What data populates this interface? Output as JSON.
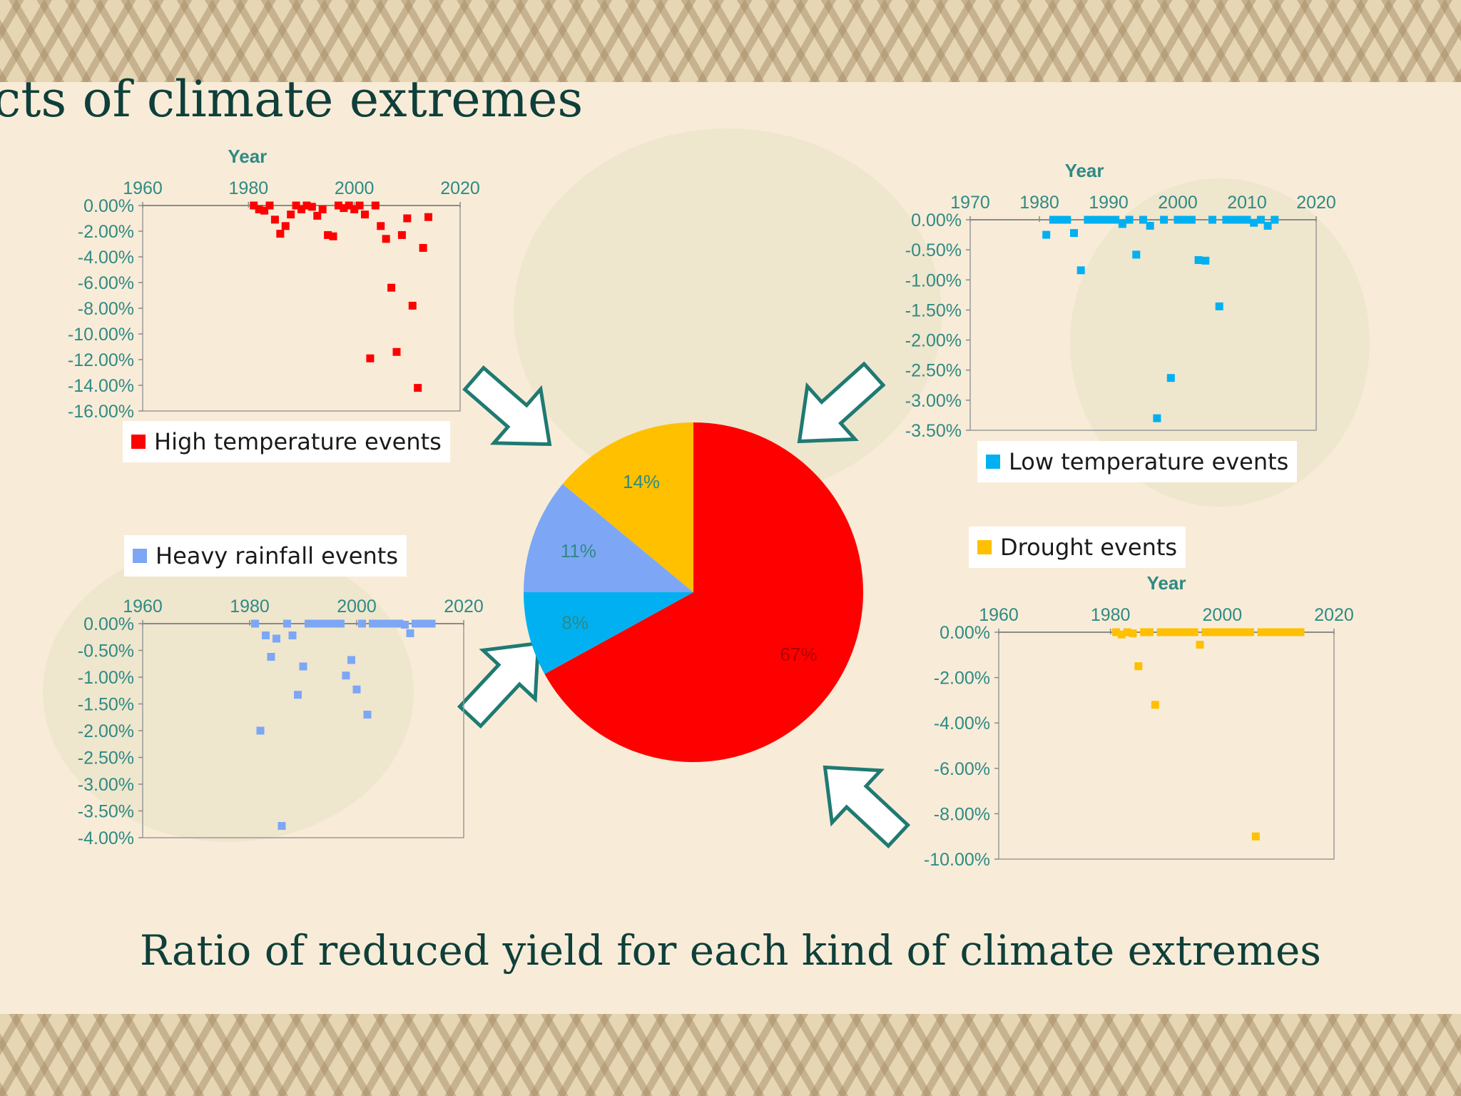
{
  "slide": {
    "title": "cts of climate extremes",
    "caption": "Ratio of reduced yield for each kind of climate extremes"
  },
  "colors": {
    "text_dark": "#0f3f3a",
    "axis_teal": "#2f8a84",
    "arrow_stroke": "#1f7a72",
    "high_temp": "#ff0000",
    "low_temp": "#00b0f0",
    "heavy_rain": "#7da7f5",
    "drought": "#ffc000"
  },
  "chart_data": [
    {
      "type": "pie",
      "title": "",
      "slices": [
        {
          "name": "High temperature events",
          "value": 67,
          "label": "67%",
          "color": "#ff0000"
        },
        {
          "name": "Low temperature events",
          "value": 8,
          "label": "8%",
          "color": "#00b0f0"
        },
        {
          "name": "Heavy rainfall events",
          "value": 11,
          "label": "11%",
          "color": "#7da7f5"
        },
        {
          "name": "Drought events",
          "value": 14,
          "label": "14%",
          "color": "#ffc000"
        }
      ]
    },
    {
      "type": "scatter",
      "xlabel": "Year",
      "legend": "High temperature events",
      "color": "#ff0000",
      "xlim": [
        1960,
        2020
      ],
      "xticks": [
        "1960",
        "1980",
        "2000",
        "2020"
      ],
      "ylim": [
        -16,
        0
      ],
      "yticks": [
        "0.00%",
        "-2.00%",
        "-4.00%",
        "-6.00%",
        "-8.00%",
        "-10.00%",
        "-12.00%",
        "-14.00%",
        "-16.00%"
      ],
      "points": [
        [
          1981,
          0
        ],
        [
          1982,
          -0.3
        ],
        [
          1983,
          -0.4
        ],
        [
          1984,
          0
        ],
        [
          1985,
          -1.1
        ],
        [
          1986,
          -2.2
        ],
        [
          1987,
          -1.6
        ],
        [
          1988,
          -0.7
        ],
        [
          1989,
          0
        ],
        [
          1990,
          -0.3
        ],
        [
          1991,
          0
        ],
        [
          1992,
          -0.1
        ],
        [
          1993,
          -0.8
        ],
        [
          1994,
          -0.3
        ],
        [
          1995,
          -2.3
        ],
        [
          1996,
          -2.4
        ],
        [
          1997,
          0
        ],
        [
          1998,
          -0.2
        ],
        [
          1999,
          0
        ],
        [
          2000,
          -0.3
        ],
        [
          2001,
          0
        ],
        [
          2002,
          -0.7
        ],
        [
          2003,
          -11.9
        ],
        [
          2004,
          0
        ],
        [
          2005,
          -1.6
        ],
        [
          2006,
          -2.6
        ],
        [
          2007,
          -6.4
        ],
        [
          2008,
          -11.4
        ],
        [
          2009,
          -2.3
        ],
        [
          2010,
          -1
        ],
        [
          2011,
          -7.8
        ],
        [
          2012,
          -14.2
        ],
        [
          2013,
          -3.3
        ],
        [
          2014,
          -0.9
        ]
      ]
    },
    {
      "type": "scatter",
      "xlabel": "Year",
      "legend": "Low temperature events",
      "color": "#00b0f0",
      "xlim": [
        1970,
        2020
      ],
      "xticks": [
        "1970",
        "1980",
        "1990",
        "2000",
        "2010",
        "2020"
      ],
      "ylim": [
        -3.5,
        0
      ],
      "yticks": [
        "0.00%",
        "-0.50%",
        "-1.00%",
        "-1.50%",
        "-2.00%",
        "-2.50%",
        "-3.00%",
        "-3.50%"
      ],
      "points": [
        [
          1981,
          -0.25
        ],
        [
          1982,
          0
        ],
        [
          1983,
          0
        ],
        [
          1984,
          0
        ],
        [
          1985,
          -0.22
        ],
        [
          1986,
          -0.84
        ],
        [
          1987,
          0
        ],
        [
          1988,
          0
        ],
        [
          1989,
          0
        ],
        [
          1990,
          0
        ],
        [
          1991,
          0
        ],
        [
          1992,
          -0.07
        ],
        [
          1993,
          0
        ],
        [
          1994,
          -0.58
        ],
        [
          1995,
          0
        ],
        [
          1996,
          -0.1
        ],
        [
          1997,
          -3.3
        ],
        [
          1998,
          0
        ],
        [
          1999,
          -2.63
        ],
        [
          2000,
          0
        ],
        [
          2001,
          0
        ],
        [
          2002,
          0
        ],
        [
          2003,
          -0.67
        ],
        [
          2004,
          -0.68
        ],
        [
          2005,
          0
        ],
        [
          2006,
          -1.44
        ],
        [
          2007,
          0
        ],
        [
          2008,
          0
        ],
        [
          2009,
          0
        ],
        [
          2010,
          0
        ],
        [
          2011,
          -0.05
        ],
        [
          2012,
          0
        ],
        [
          2013,
          -0.1
        ],
        [
          2014,
          0
        ]
      ]
    },
    {
      "type": "scatter",
      "xlabel": "",
      "legend": "Heavy rainfall events",
      "color": "#7da7f5",
      "xlim": [
        1960,
        2020
      ],
      "xticks": [
        "1960",
        "1980",
        "2000",
        "2020"
      ],
      "ylim": [
        -4,
        0
      ],
      "yticks": [
        "0.00%",
        "-0.50%",
        "-1.00%",
        "-1.50%",
        "-2.00%",
        "-2.50%",
        "-3.00%",
        "-3.50%",
        "-4.00%"
      ],
      "points": [
        [
          1981,
          0
        ],
        [
          1982,
          -2
        ],
        [
          1983,
          -0.22
        ],
        [
          1984,
          -0.62
        ],
        [
          1985,
          -0.28
        ],
        [
          1986,
          -3.78
        ],
        [
          1987,
          0
        ],
        [
          1988,
          -0.22
        ],
        [
          1989,
          -1.33
        ],
        [
          1990,
          -0.8
        ],
        [
          1991,
          0
        ],
        [
          1992,
          0
        ],
        [
          1993,
          0
        ],
        [
          1994,
          0
        ],
        [
          1995,
          0
        ],
        [
          1996,
          0
        ],
        [
          1997,
          0
        ],
        [
          1998,
          -0.97
        ],
        [
          1999,
          -0.68
        ],
        [
          2000,
          -1.23
        ],
        [
          2001,
          0
        ],
        [
          2002,
          -1.7
        ],
        [
          2003,
          0
        ],
        [
          2004,
          0
        ],
        [
          2005,
          0
        ],
        [
          2006,
          0
        ],
        [
          2007,
          0
        ],
        [
          2008,
          0
        ],
        [
          2009,
          -0.02
        ],
        [
          2010,
          -0.18
        ],
        [
          2011,
          0
        ],
        [
          2012,
          0
        ],
        [
          2013,
          0
        ],
        [
          2014,
          0
        ]
      ]
    },
    {
      "type": "scatter",
      "xlabel": "Year",
      "legend": "Drought events",
      "color": "#ffc000",
      "xlim": [
        1960,
        2020
      ],
      "xticks": [
        "1960",
        "1980",
        "2000",
        "2020"
      ],
      "ylim": [
        -10,
        0
      ],
      "yticks": [
        "0.00%",
        "-2.00%",
        "-4.00%",
        "-6.00%",
        "-8.00%",
        "-10.00%"
      ],
      "points": [
        [
          1981,
          0
        ],
        [
          1982,
          -0.1
        ],
        [
          1983,
          0
        ],
        [
          1984,
          -0.05
        ],
        [
          1985,
          -1.5
        ],
        [
          1986,
          0
        ],
        [
          1987,
          0
        ],
        [
          1988,
          -3.2
        ],
        [
          1989,
          0
        ],
        [
          1990,
          0
        ],
        [
          1991,
          0
        ],
        [
          1992,
          0
        ],
        [
          1993,
          0
        ],
        [
          1994,
          0
        ],
        [
          1995,
          0
        ],
        [
          1996,
          -0.55
        ],
        [
          1997,
          0
        ],
        [
          1998,
          0
        ],
        [
          1999,
          0
        ],
        [
          2000,
          0
        ],
        [
          2001,
          0
        ],
        [
          2002,
          0
        ],
        [
          2003,
          0
        ],
        [
          2004,
          0
        ],
        [
          2005,
          0
        ],
        [
          2006,
          -9
        ],
        [
          2007,
          0
        ],
        [
          2008,
          0
        ],
        [
          2009,
          0
        ],
        [
          2010,
          0
        ],
        [
          2011,
          0
        ],
        [
          2012,
          0
        ],
        [
          2013,
          0
        ],
        [
          2014,
          0
        ]
      ]
    }
  ]
}
